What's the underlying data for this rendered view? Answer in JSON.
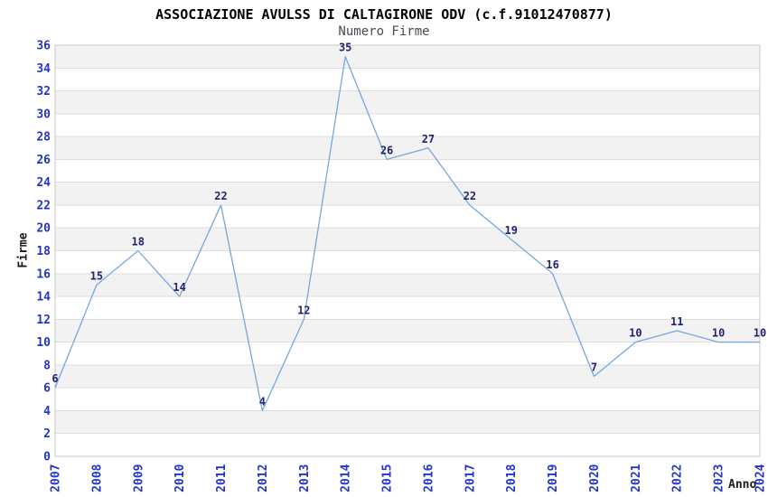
{
  "chart_data": {
    "type": "line",
    "title": "ASSOCIAZIONE AVULSS DI CALTAGIRONE ODV (c.f.91012470877)",
    "subtitle": "Numero Firme",
    "xlabel": "Anno",
    "ylabel": "Firme",
    "categories": [
      "2007",
      "2008",
      "2009",
      "2010",
      "2011",
      "2012",
      "2013",
      "2014",
      "2015",
      "2016",
      "2017",
      "2018",
      "2019",
      "2020",
      "2021",
      "2022",
      "2023",
      "2024"
    ],
    "values": [
      6,
      15,
      18,
      14,
      22,
      4,
      12,
      35,
      26,
      27,
      22,
      19,
      16,
      7,
      10,
      11,
      10,
      10
    ],
    "ylim": [
      0,
      36
    ],
    "ytick_step": 2,
    "grid": true,
    "legend": "none",
    "point_labels_shown": true,
    "x_tick_rotation_deg": -90,
    "colors": {
      "line": "#74a7e0",
      "value_labels": "#232370",
      "tick_labels": "#2334cc",
      "grid_line": "#dddddd",
      "plot_border": "#c8c8c8",
      "band_alt": "#f2f2f2",
      "band_main": "#ffffff",
      "title": "#000000",
      "subtitle": "#4a4a5a",
      "axis_titles": "#1a1a1a",
      "background": "#ffffff"
    }
  }
}
